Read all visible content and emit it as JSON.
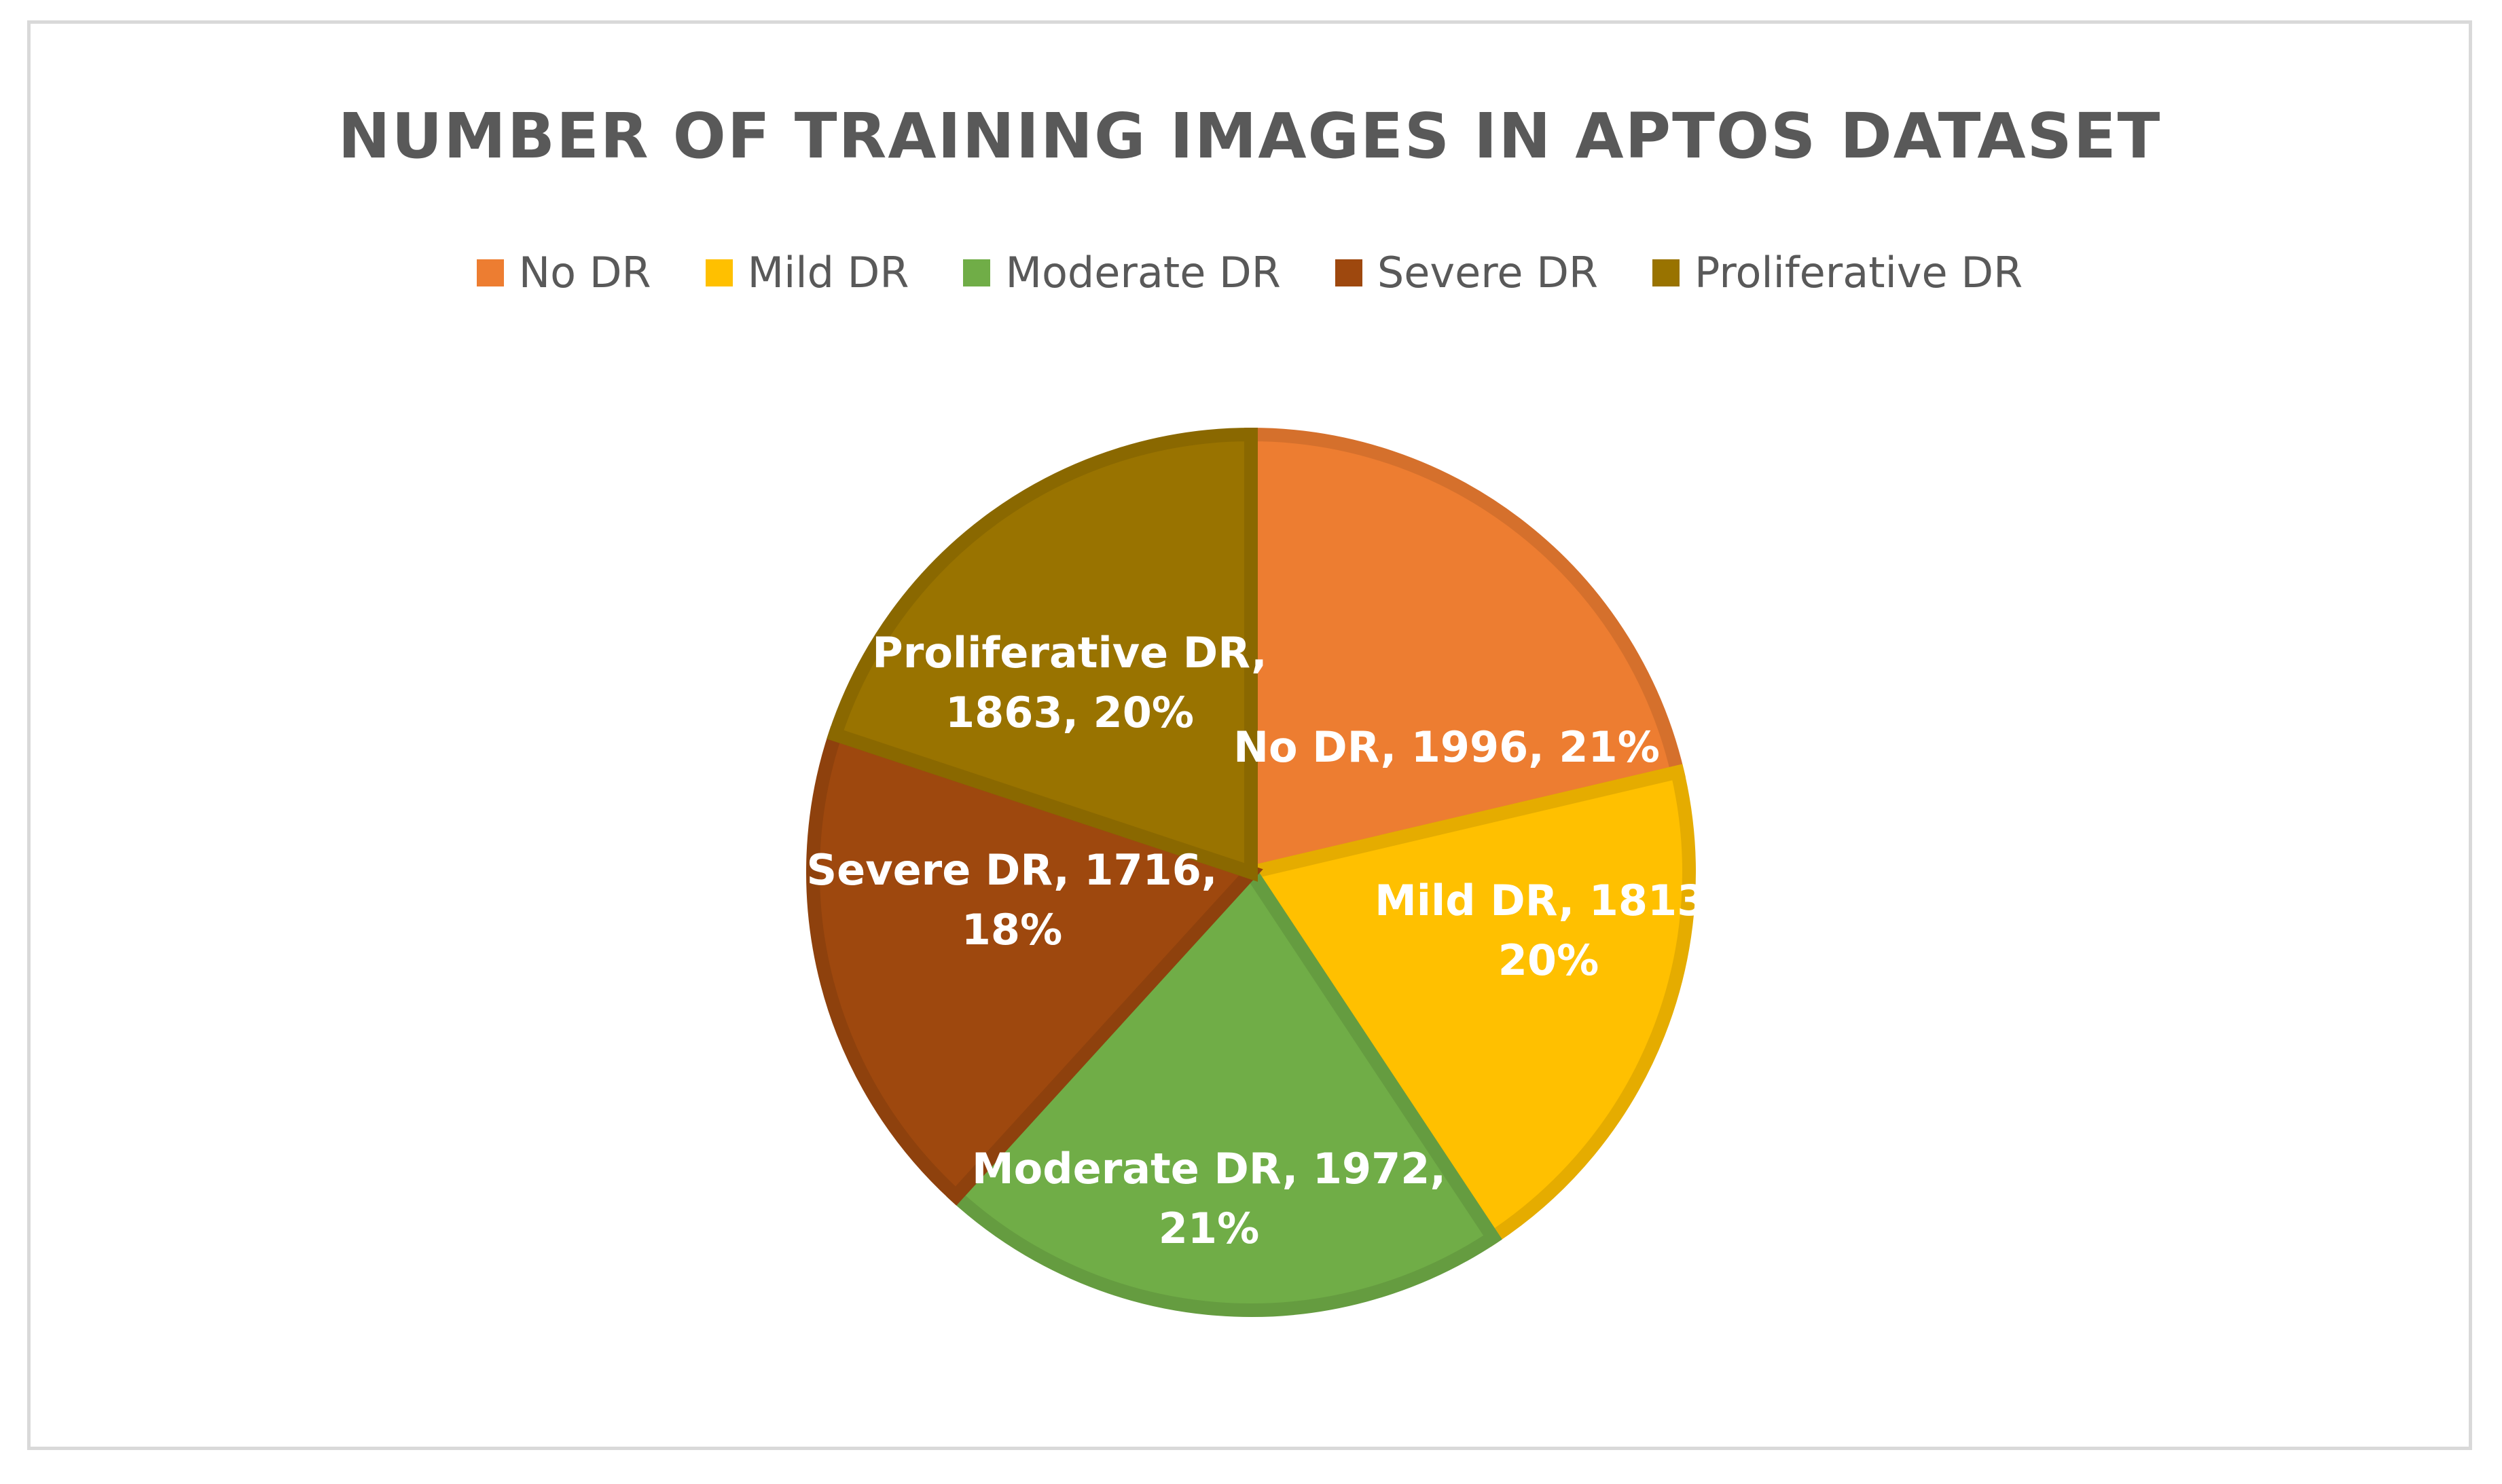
{
  "chart_data": {
    "type": "pie",
    "title": "NUMBER OF TRAINING IMAGES IN APTOS DATASET",
    "legend_position": "top",
    "slices": [
      {
        "name": "No DR",
        "value": 1996,
        "percent": "21%",
        "color": "#ED7D31",
        "border": "#D5702C",
        "label_lines": [
          "No DR, 1996, 21%"
        ]
      },
      {
        "name": "Mild DR",
        "value": 1813,
        "percent": "20%",
        "color": "#FFC000",
        "border": "#E5AC00",
        "label_lines": [
          "Mild DR, 1813,",
          "20%"
        ]
      },
      {
        "name": "Moderate DR",
        "value": 1972,
        "percent": "21%",
        "color": "#70AD47",
        "border": "#659C40",
        "label_lines": [
          "Moderate DR, 1972,",
          "21%"
        ]
      },
      {
        "name": "Severe DR",
        "value": 1716,
        "percent": "18%",
        "color": "#9E480E",
        "border": "#8E410D",
        "label_lines": [
          "Severe DR, 1716,",
          "18%"
        ]
      },
      {
        "name": "Proliferative DR",
        "value": 1863,
        "percent": "20%",
        "color": "#997300",
        "border": "#8A6800",
        "label_lines": [
          "Proliferative DR,",
          "1863, 20%"
        ]
      }
    ]
  }
}
